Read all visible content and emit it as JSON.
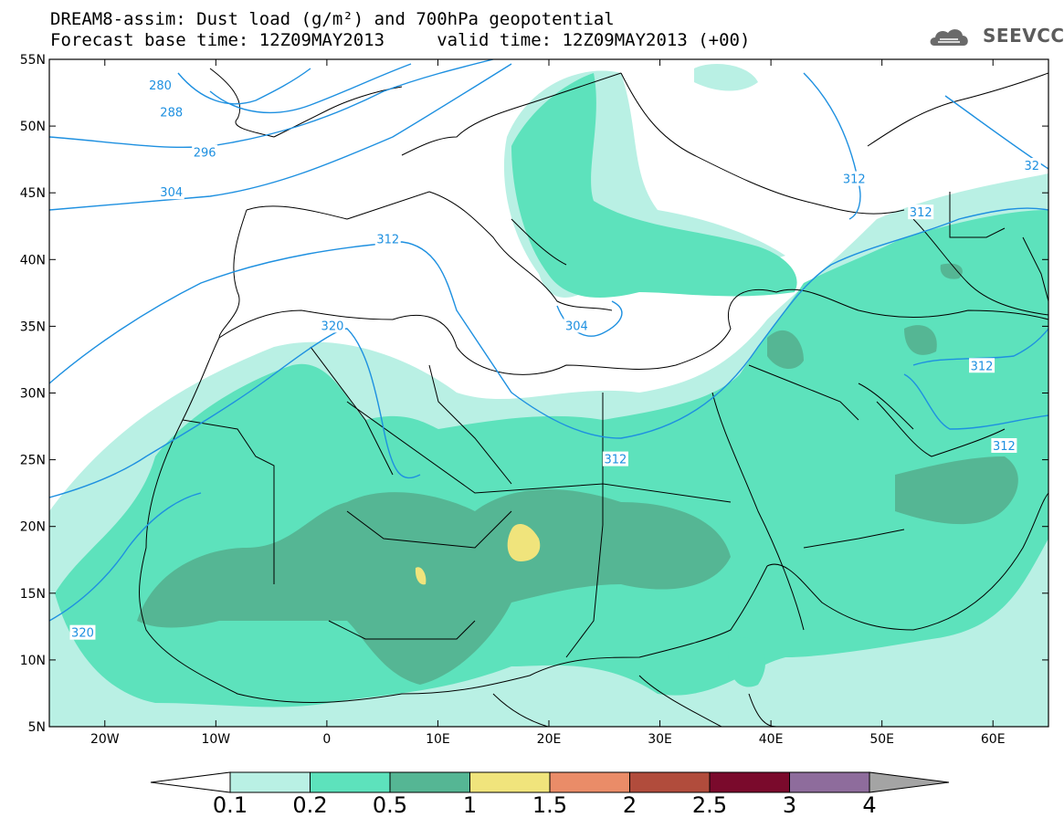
{
  "header": {
    "title_line1": "DREAM8-assim: Dust load (g/m²) and 700hPa geopotential",
    "title_line2": "Forecast base time: 12Z09MAY2013     valid time: 12Z09MAY2013 (+00)",
    "logo_text": "SEEVCCC",
    "logo_icon": "cloud-logo-icon"
  },
  "axes": {
    "lat_labels": [
      "55N",
      "50N",
      "45N",
      "40N",
      "35N",
      "30N",
      "25N",
      "20N",
      "15N",
      "10N",
      "5N"
    ],
    "lat_values": [
      55,
      50,
      45,
      40,
      35,
      30,
      25,
      20,
      15,
      10,
      5
    ],
    "lon_labels": [
      "20W",
      "10W",
      "0",
      "10E",
      "20E",
      "30E",
      "40E",
      "50E",
      "60E"
    ],
    "lon_values": [
      -20,
      -10,
      0,
      10,
      20,
      30,
      40,
      50,
      60
    ],
    "lon_range": [
      -25,
      65
    ],
    "lat_range": [
      5,
      55
    ]
  },
  "contour_labels": [
    {
      "text": "280",
      "lon": -15,
      "lat": 53
    },
    {
      "text": "288",
      "lon": -14,
      "lat": 51
    },
    {
      "text": "296",
      "lon": -11,
      "lat": 48
    },
    {
      "text": "304",
      "lon": -14,
      "lat": 45
    },
    {
      "text": "312",
      "lon": 5.5,
      "lat": 41.5
    },
    {
      "text": "320",
      "lon": 0.5,
      "lat": 35
    },
    {
      "text": "304",
      "lon": 22.5,
      "lat": 35
    },
    {
      "text": "312",
      "lon": 26,
      "lat": 25
    },
    {
      "text": "312",
      "lon": 47.5,
      "lat": 46
    },
    {
      "text": "312",
      "lon": 53.5,
      "lat": 43.5
    },
    {
      "text": "312",
      "lon": 59,
      "lat": 32
    },
    {
      "text": "312",
      "lon": 61,
      "lat": 26
    },
    {
      "text": "320",
      "lon": -22,
      "lat": 12
    },
    {
      "text": "32",
      "lon": 63.5,
      "lat": 47
    }
  ],
  "colorbar": {
    "labels": [
      "0.1",
      "0.2",
      "0.5",
      "1",
      "1.5",
      "2",
      "2.5",
      "3",
      "4"
    ],
    "colors": [
      "#ffffff",
      "#b9f0e4",
      "#5de2bc",
      "#55b694",
      "#f0e47c",
      "#ea8c68",
      "#b14c3c",
      "#7a0a2c",
      "#8e6c9c",
      "#a4a4a4"
    ],
    "unit": "g/m²"
  },
  "dust_colors": {
    "light": "#b9f0e4",
    "medium": "#5de2bc",
    "dark": "#55b694",
    "yellow": "#f0e47c"
  },
  "contour_color": "#1e90e0"
}
